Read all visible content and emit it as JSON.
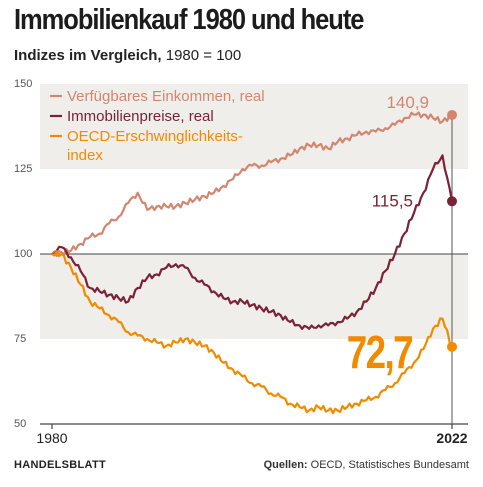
{
  "header": {
    "title": "Immobilienkauf 1980 und heute",
    "subtitle_bold": "Indizes im Vergleich,",
    "subtitle_rest": " 1980 = 100"
  },
  "footer": {
    "brand": "HANDELSBLATT",
    "sources_label": "Quellen:",
    "sources": " OECD, Statistisches Bundesamt"
  },
  "colors": {
    "income": "#d28670",
    "prices": "#7a2236",
    "affordability": "#f08b00",
    "band": "#efeeea",
    "axis": "#444444"
  },
  "chart_data": {
    "type": "line",
    "title": "Immobilienkauf 1980 und heute",
    "subtitle": "Indizes im Vergleich, 1980 = 100",
    "xlim": [
      1980,
      2022
    ],
    "ylim": [
      50,
      150
    ],
    "y_ticks": [
      "150",
      "125",
      "100",
      "75",
      "50"
    ],
    "x_tick_labels": [
      "1980",
      "2022"
    ],
    "baseline": 100,
    "legend_position": "top-left",
    "series": [
      {
        "name": "Verfügbares Einkommen, real",
        "color_key": "income",
        "end_label": "140,9",
        "end_value": 140.9,
        "points": [
          [
            1980,
            100
          ],
          [
            1981,
            100.5
          ],
          [
            1982,
            101
          ],
          [
            1983,
            103
          ],
          [
            1984,
            105
          ],
          [
            1985,
            106
          ],
          [
            1986,
            109
          ],
          [
            1987,
            111
          ],
          [
            1988,
            115
          ],
          [
            1989,
            118
          ],
          [
            1990,
            113
          ],
          [
            1991,
            114
          ],
          [
            1992,
            114
          ],
          [
            1993,
            114
          ],
          [
            1994,
            115
          ],
          [
            1995,
            116
          ],
          [
            1996,
            117
          ],
          [
            1997,
            118
          ],
          [
            1998,
            120
          ],
          [
            1999,
            122
          ],
          [
            2000,
            125
          ],
          [
            2001,
            126
          ],
          [
            2002,
            126
          ],
          [
            2003,
            127
          ],
          [
            2004,
            128
          ],
          [
            2005,
            129
          ],
          [
            2006,
            131
          ],
          [
            2007,
            132
          ],
          [
            2008,
            132
          ],
          [
            2009,
            131
          ],
          [
            2010,
            133
          ],
          [
            2011,
            134
          ],
          [
            2012,
            135
          ],
          [
            2013,
            136
          ],
          [
            2014,
            136
          ],
          [
            2015,
            137
          ],
          [
            2016,
            138
          ],
          [
            2017,
            140
          ],
          [
            2018,
            141
          ],
          [
            2019,
            141
          ],
          [
            2020,
            140
          ],
          [
            2021,
            139
          ],
          [
            2022,
            140.9
          ]
        ]
      },
      {
        "name": "Immobilienpreise, real",
        "color_key": "prices",
        "end_label": "115,5",
        "end_value": 115.5,
        "points": [
          [
            1980,
            100
          ],
          [
            1981,
            102
          ],
          [
            1982,
            99
          ],
          [
            1983,
            95
          ],
          [
            1984,
            90
          ],
          [
            1985,
            89
          ],
          [
            1986,
            88
          ],
          [
            1987,
            87
          ],
          [
            1988,
            86
          ],
          [
            1989,
            90
          ],
          [
            1990,
            93
          ],
          [
            1991,
            94
          ],
          [
            1992,
            96
          ],
          [
            1993,
            97
          ],
          [
            1994,
            96
          ],
          [
            1995,
            93
          ],
          [
            1996,
            91
          ],
          [
            1997,
            89
          ],
          [
            1998,
            87
          ],
          [
            1999,
            86
          ],
          [
            2000,
            86
          ],
          [
            2001,
            85
          ],
          [
            2002,
            84
          ],
          [
            2003,
            83
          ],
          [
            2004,
            82
          ],
          [
            2005,
            80
          ],
          [
            2006,
            79
          ],
          [
            2007,
            78
          ],
          [
            2008,
            79
          ],
          [
            2009,
            79
          ],
          [
            2010,
            80
          ],
          [
            2011,
            81
          ],
          [
            2012,
            83
          ],
          [
            2013,
            86
          ],
          [
            2014,
            90
          ],
          [
            2015,
            95
          ],
          [
            2016,
            100
          ],
          [
            2017,
            106
          ],
          [
            2018,
            112
          ],
          [
            2019,
            118
          ],
          [
            2020,
            125
          ],
          [
            2021,
            129
          ],
          [
            2022,
            115.5
          ]
        ]
      },
      {
        "name": "OECD-Erschwinglichkeits-\nindex",
        "color_key": "affordability",
        "end_label": "72,7",
        "end_value": 72.7,
        "points": [
          [
            1980,
            100
          ],
          [
            1981,
            100
          ],
          [
            1982,
            96
          ],
          [
            1983,
            91
          ],
          [
            1984,
            86
          ],
          [
            1985,
            84
          ],
          [
            1986,
            82
          ],
          [
            1987,
            80
          ],
          [
            1988,
            77
          ],
          [
            1989,
            76
          ],
          [
            1990,
            75
          ],
          [
            1991,
            74
          ],
          [
            1992,
            73
          ],
          [
            1993,
            74
          ],
          [
            1994,
            75
          ],
          [
            1995,
            74
          ],
          [
            1996,
            73
          ],
          [
            1997,
            71
          ],
          [
            1998,
            68
          ],
          [
            1999,
            66
          ],
          [
            2000,
            64
          ],
          [
            2001,
            62
          ],
          [
            2002,
            61
          ],
          [
            2003,
            59
          ],
          [
            2004,
            58
          ],
          [
            2005,
            56
          ],
          [
            2006,
            55
          ],
          [
            2007,
            54
          ],
          [
            2008,
            55
          ],
          [
            2009,
            54
          ],
          [
            2010,
            54
          ],
          [
            2011,
            55
          ],
          [
            2012,
            56
          ],
          [
            2013,
            57
          ],
          [
            2014,
            58
          ],
          [
            2015,
            60
          ],
          [
            2016,
            62
          ],
          [
            2017,
            65
          ],
          [
            2018,
            68
          ],
          [
            2019,
            72
          ],
          [
            2020,
            78
          ],
          [
            2021,
            81
          ],
          [
            2022,
            72.7
          ]
        ]
      }
    ]
  }
}
